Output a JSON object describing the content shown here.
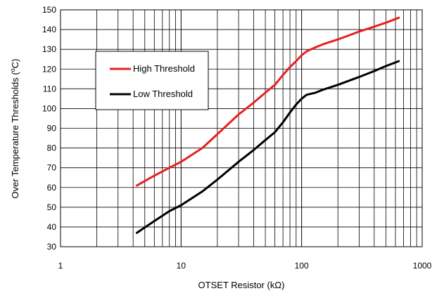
{
  "chart_data": {
    "type": "line",
    "x_scale": "log",
    "xlim": [
      1,
      1000
    ],
    "ylim": [
      30,
      150
    ],
    "x_ticks": [
      1,
      10,
      100,
      1000
    ],
    "x_tick_labels": [
      "1",
      "10",
      "100",
      "1000"
    ],
    "y_ticks": [
      30,
      40,
      50,
      60,
      70,
      80,
      90,
      100,
      110,
      120,
      130,
      140,
      150
    ],
    "y_tick_labels": [
      "30",
      "40",
      "50",
      "60",
      "70",
      "80",
      "90",
      "100",
      "110",
      "120",
      "130",
      "140",
      "150"
    ],
    "xlabel": "OTSET Resistor (kΩ)",
    "ylabel_text": "Over Temperature Thresholds (",
    "ylabel_unit": "o",
    "ylabel_end": "C)",
    "grid": true,
    "legend_placement": "upper-left-inside",
    "series": [
      {
        "name": "High Threshold",
        "color": "#e8201f",
        "x": [
          4.3,
          6,
          8,
          10,
          15,
          20,
          30,
          40,
          50,
          60,
          70,
          80,
          90,
          100,
          110,
          130,
          150,
          200,
          300,
          400,
          500,
          640
        ],
        "y": [
          61,
          66,
          70,
          73,
          80,
          87,
          97,
          103,
          108,
          112,
          117,
          121,
          124,
          127,
          129,
          131,
          132.5,
          135,
          139,
          141.5,
          143.5,
          146
        ]
      },
      {
        "name": "Low Threshold",
        "color": "#000000",
        "x": [
          4.3,
          6,
          8,
          10,
          15,
          20,
          30,
          40,
          50,
          60,
          70,
          80,
          90,
          100,
          110,
          130,
          150,
          200,
          300,
          400,
          500,
          640
        ],
        "y": [
          37,
          43,
          48,
          51,
          58,
          64,
          73,
          79,
          84,
          88,
          93,
          98,
          102,
          105,
          107,
          108,
          109.5,
          112,
          116,
          119,
          121.5,
          124
        ]
      }
    ]
  }
}
